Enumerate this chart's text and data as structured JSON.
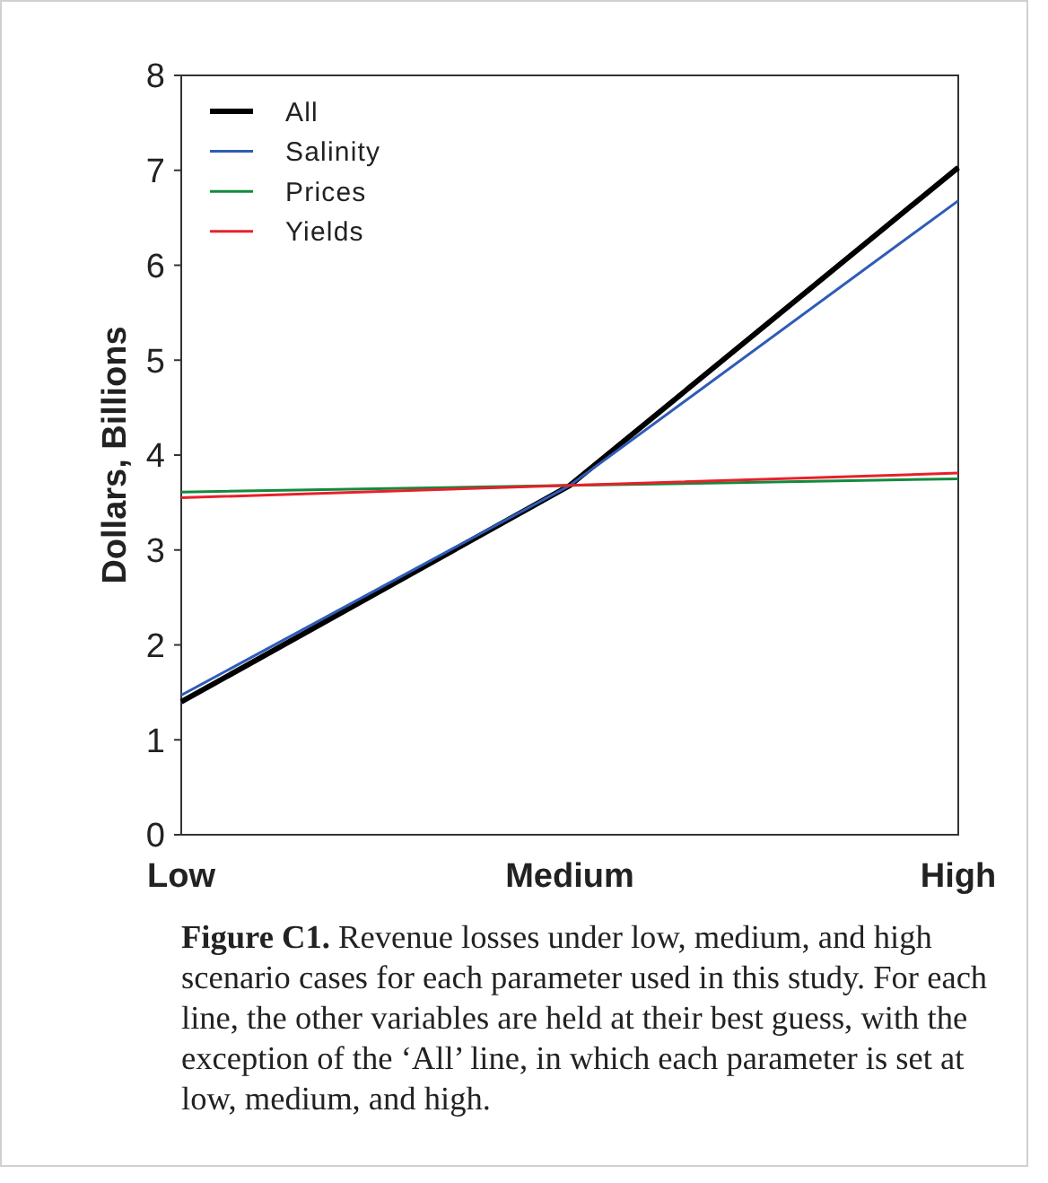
{
  "chart_data": {
    "type": "line",
    "categories": [
      "Low",
      "Medium",
      "High"
    ],
    "ylabel": "Dollars, Billions",
    "ylim": [
      0,
      8
    ],
    "yticks": [
      0,
      1,
      2,
      3,
      4,
      5,
      6,
      7,
      8
    ],
    "legend": "top left",
    "grid": false,
    "series": [
      {
        "name": "All",
        "color": "#000000",
        "values": [
          1.4,
          3.68,
          7.03
        ]
      },
      {
        "name": "Salinity",
        "color": "#2e5cb8",
        "values": [
          1.47,
          3.68,
          6.68
        ]
      },
      {
        "name": "Prices",
        "color": "#138a3e",
        "values": [
          3.61,
          3.68,
          3.75
        ]
      },
      {
        "name": "Yields",
        "color": "#e8202a",
        "values": [
          3.55,
          3.68,
          3.81
        ]
      }
    ],
    "annotations": [
      "Figure C1. Revenue losses under low, medium, and high scenario cases for each parameter used in this study. For each line, the other variables are held at their best guess, with the exception of the ‘All’ line, in which each parameter is set at low, medium, and high."
    ]
  }
}
